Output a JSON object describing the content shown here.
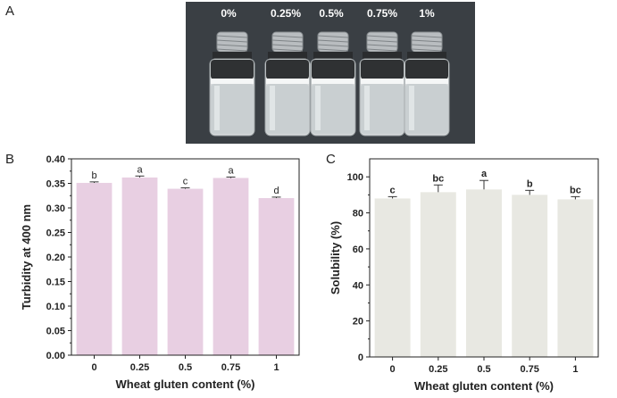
{
  "panels": {
    "a": "A",
    "b": "B",
    "c": "C"
  },
  "photo": {
    "labels": [
      "0%",
      "0.25%",
      "0.5%",
      "0.75%",
      "1%"
    ],
    "background": "#3a3f44"
  },
  "chart_data": [
    {
      "type": "bar",
      "categories": [
        "0",
        "0.25",
        "0.5",
        "0.75",
        "1"
      ],
      "values": [
        0.351,
        0.362,
        0.339,
        0.361,
        0.32
      ],
      "errors": [
        0.002,
        0.003,
        0.002,
        0.002,
        0.002
      ],
      "letters": [
        "b",
        "a",
        "c",
        "a",
        "d"
      ],
      "xlabel": "Wheat gluten content (%)",
      "ylabel": "Turbidity at 400 nm",
      "ylim": [
        0,
        0.4
      ],
      "yticks": [
        "0.00",
        "0.05",
        "0.10",
        "0.15",
        "0.20",
        "0.25",
        "0.30",
        "0.35",
        "0.40"
      ],
      "bar_color": "#e8cfe2",
      "bold_letters": false
    },
    {
      "type": "bar",
      "categories": [
        "0",
        "0.25",
        "0.5",
        "0.75",
        "1"
      ],
      "values": [
        88,
        91.5,
        93,
        90,
        87.5
      ],
      "errors": [
        1,
        4,
        5,
        2.5,
        1.5
      ],
      "letters": [
        "c",
        "bc",
        "a",
        "b",
        "bc"
      ],
      "xlabel": "Wheat gluten content (%)",
      "ylabel": "Solubility (%)",
      "ylim": [
        0,
        110
      ],
      "yticks": [
        "0",
        "20",
        "40",
        "60",
        "80",
        "100"
      ],
      "bar_color": "#e8e8e2",
      "bold_letters": true
    }
  ]
}
